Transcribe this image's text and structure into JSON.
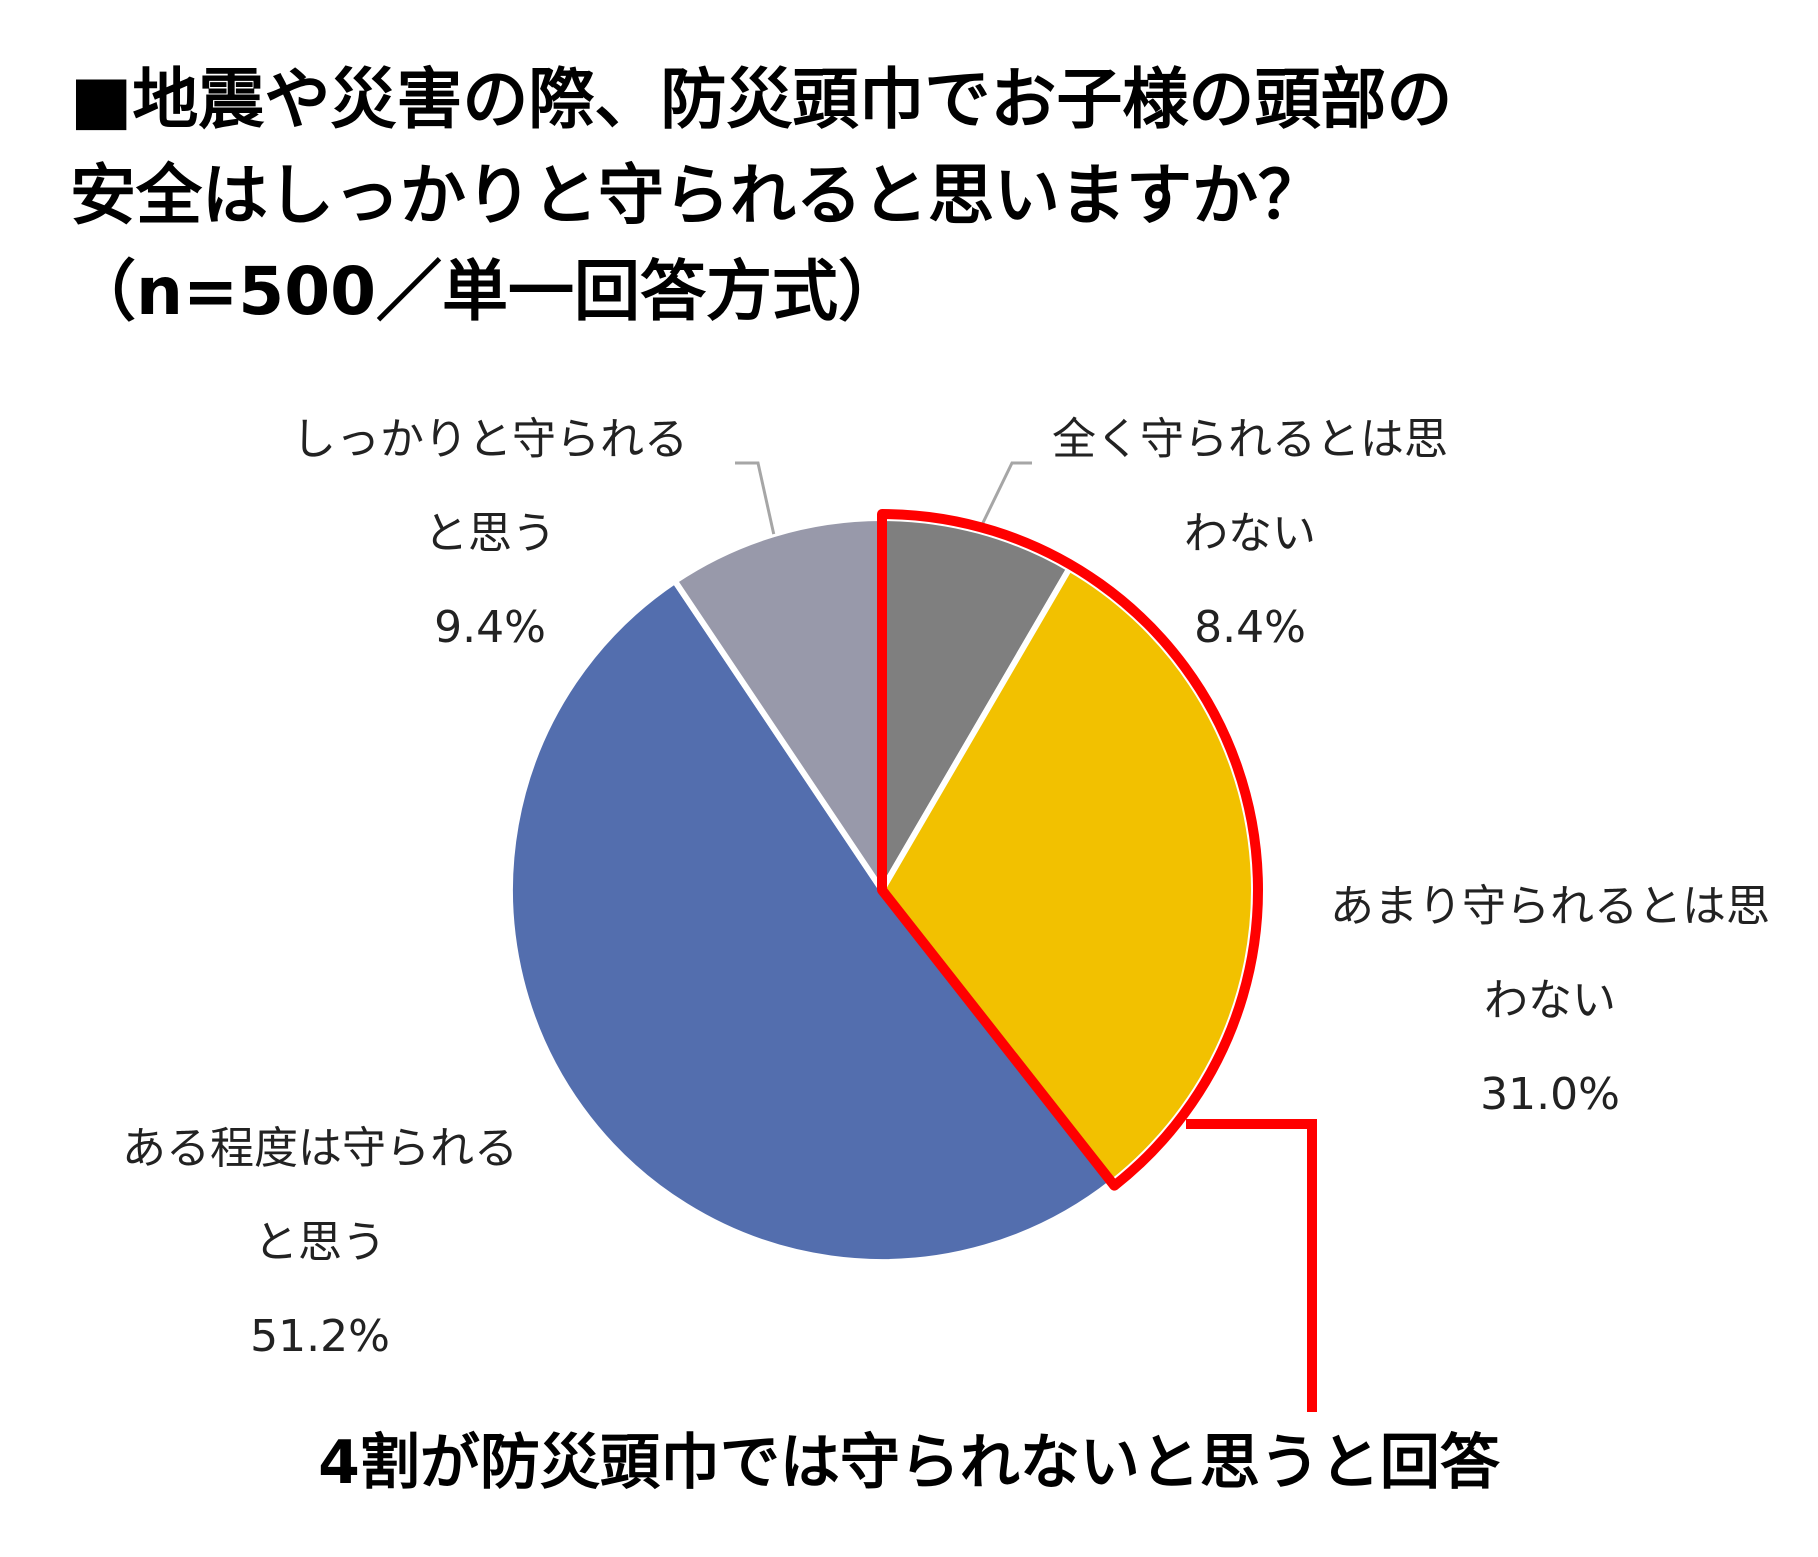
{
  "title": {
    "line1": "■地震や災害の際、防災頭巾でお子様の頭部の",
    "line2": "安全はしっかりと守られると思いますか？",
    "line3": "（n=500／単一回答方式）"
  },
  "chart_data": {
    "type": "pie",
    "slices": [
      {
        "label_line1": "全く守られるとは思",
        "label_line2": "わない",
        "value": 8.4,
        "value_label": "8.4%",
        "color": "#7f7f7f"
      },
      {
        "label_line1": "あまり守られるとは思",
        "label_line2": "わない",
        "value": 31.0,
        "value_label": "31.0%",
        "color": "#f2c100"
      },
      {
        "label_line1": "ある程度は守られる",
        "label_line2": "と思う",
        "value": 51.2,
        "value_label": "51.2%",
        "color": "#536eae"
      },
      {
        "label_line1": "しっかりと守られる",
        "label_line2": "と思う",
        "value": 9.4,
        "value_label": "9.4%",
        "color": "#9899aa"
      }
    ],
    "start_angle": "12 o'clock",
    "direction": "clockwise",
    "highlight": {
      "slices": [
        0,
        1
      ],
      "color": "#ff0000"
    },
    "annotation": "4割が防災頭巾では守られないと思うと回答"
  },
  "colors": {
    "highlight": "#ff0000",
    "leader_line": "#a6a6a6"
  }
}
